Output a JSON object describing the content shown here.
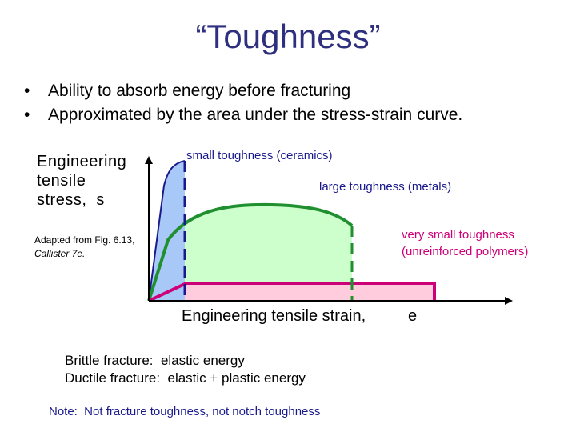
{
  "slide": {
    "title": "“Toughness”",
    "bullets": [
      "Ability to absorb energy before fracturing",
      "Approximated by the area under the stress-strain curve."
    ],
    "bullet_glyph": "•"
  },
  "diagram": {
    "y_axis_label": "Engineering tensile stress,",
    "y_axis_symbol": "s",
    "x_axis_label": "Engineering tensile strain,",
    "x_axis_symbol": "e",
    "curve_labels": {
      "ceramics": "small toughness (ceramics)",
      "metals": "large toughness (metals)",
      "polymers_line1": "very small toughness",
      "polymers_line2": "(unreinforced polymers)"
    },
    "source_line1": "Adapted from Fig. 6.13,",
    "source_line2": "Callister 7e."
  },
  "fracture_notes": {
    "brittle": "Brittle fracture:  elastic energy",
    "ductile": "Ductile fracture:  elastic + plastic energy"
  },
  "note": "Note:  Not fracture toughness, not notch toughness",
  "colors": {
    "title": "#2f2f7f",
    "ceramics_fill": "#a8c8f8",
    "metals_fill": "#ccffcc",
    "polymers_fill": "#ffccdd",
    "metals_curve": "#1f8f2f",
    "polymers_curve": "#cc0077",
    "dashed_line": "#1a1a8c",
    "label_blue": "#1a1a8c",
    "label_magenta": "#cc0077"
  }
}
